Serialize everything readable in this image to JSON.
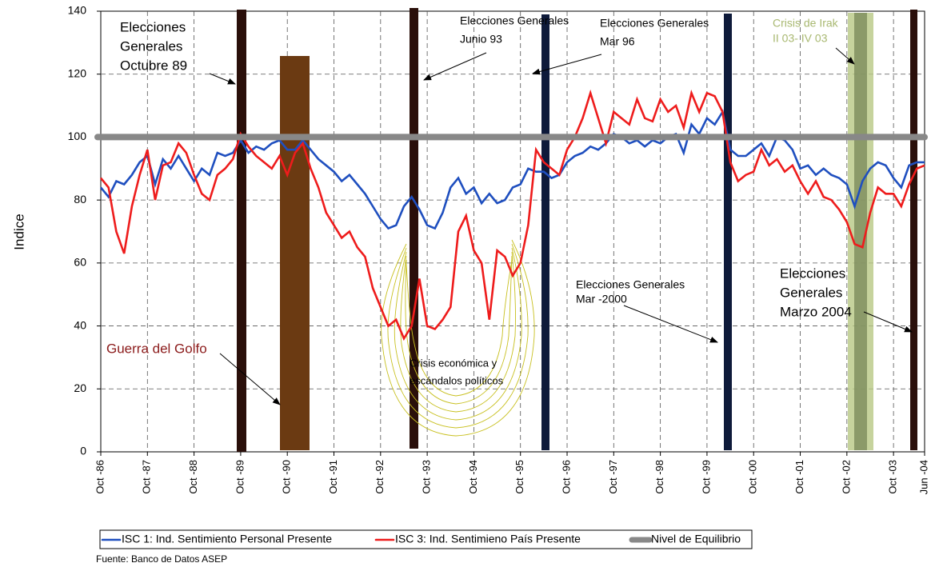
{
  "chart_data": {
    "type": "line",
    "y_label": "Indice",
    "source": "Fuente: Banco de Datos ASEP",
    "categories": [
      "Oct -86",
      null,
      null,
      null,
      null,
      null,
      "Oct -87",
      null,
      null,
      null,
      null,
      null,
      "Oct -88",
      null,
      null,
      null,
      null,
      null,
      "Oct -89",
      null,
      null,
      null,
      null,
      null,
      "Oct -90",
      null,
      null,
      null,
      null,
      null,
      "Oct -91",
      null,
      null,
      null,
      null,
      null,
      "Oct -92",
      null,
      null,
      null,
      null,
      null,
      "Oct -93",
      null,
      null,
      null,
      null,
      null,
      "Oct -94",
      null,
      null,
      null,
      null,
      null,
      "Oct -95",
      null,
      null,
      null,
      null,
      null,
      "Oct -96",
      null,
      null,
      null,
      null,
      null,
      "Oct -97",
      null,
      null,
      null,
      null,
      null,
      "Oct -98",
      null,
      null,
      null,
      null,
      null,
      "Oct -99",
      null,
      null,
      null,
      null,
      null,
      "Oct -00",
      null,
      null,
      null,
      null,
      null,
      "Oct -01",
      null,
      null,
      null,
      null,
      null,
      "Oct -02",
      null,
      null,
      null,
      null,
      null,
      "Oct -03",
      null,
      null,
      null,
      "Jun -04"
    ],
    "series": [
      {
        "name": "ISC 1: Ind. Sentimiento Personal Presente",
        "color": "#1f4fbf",
        "values": [
          84,
          81,
          86,
          85,
          88,
          92,
          94,
          85,
          93,
          90,
          94,
          90,
          86,
          90,
          88,
          95,
          94,
          95,
          99,
          95,
          97,
          96,
          98,
          99,
          96,
          96,
          99,
          96,
          93,
          91,
          89,
          86,
          88,
          85,
          82,
          78,
          74,
          71,
          72,
          78,
          81,
          77,
          72,
          71,
          76,
          84,
          87,
          82,
          84,
          79,
          82,
          79,
          80,
          84,
          85,
          90,
          89,
          89,
          87,
          88,
          92,
          94,
          95,
          97,
          96,
          98,
          101,
          100,
          98,
          99,
          97,
          99,
          98,
          100,
          101,
          95,
          104,
          101,
          106,
          104,
          108,
          96,
          94,
          94,
          96,
          98,
          94,
          100,
          99,
          96,
          90,
          91,
          88,
          90,
          88,
          87,
          85,
          78,
          86,
          90,
          92,
          91,
          87,
          84,
          91,
          92,
          92
        ]
      },
      {
        "name": "ISC 3: Ind. Sentimieno País Presente",
        "color": "#ee1c1c",
        "values": [
          87,
          84,
          70,
          63,
          78,
          88,
          96,
          80,
          91,
          92,
          98,
          95,
          88,
          82,
          80,
          88,
          90,
          93,
          101,
          97,
          94,
          92,
          90,
          94,
          88,
          95,
          98,
          90,
          84,
          76,
          72,
          68,
          70,
          65,
          62,
          52,
          46,
          40,
          42,
          36,
          40,
          55,
          40,
          39,
          42,
          46,
          70,
          75,
          64,
          60,
          42,
          64,
          62,
          56,
          60,
          72,
          96,
          92,
          90,
          88,
          96,
          100,
          106,
          114,
          106,
          98,
          108,
          106,
          104,
          112,
          106,
          105,
          112,
          108,
          110,
          103,
          114,
          108,
          114,
          113,
          108,
          92,
          86,
          88,
          89,
          96,
          91,
          93,
          89,
          91,
          86,
          82,
          86,
          81,
          80,
          77,
          73,
          66,
          65,
          76,
          84,
          82,
          82,
          78,
          85,
          90,
          91
        ]
      }
    ],
    "reference_line": {
      "name": "Nivel de Equilibrio",
      "value": 100,
      "color": "#888888"
    },
    "ylim": [
      0,
      140
    ],
    "yticks": [
      0,
      20,
      40,
      60,
      80,
      100,
      120,
      140
    ],
    "grid": true,
    "annotations": [
      {
        "lines": [
          "Elecciones",
          "Generales",
          "Octubre 89"
        ],
        "color": "#000000"
      },
      {
        "lines": [
          "Elecciones Generales",
          "Junio 93"
        ],
        "color": "#000000"
      },
      {
        "lines": [
          "Elecciones Generales",
          "Mar 96"
        ],
        "color": "#000000"
      },
      {
        "lines": [
          "Crisis de Irak",
          "II 03- IV 03"
        ],
        "color": "#a8b870"
      },
      {
        "lines": [
          "Guerra del Golfo"
        ],
        "color": "#8b1a1a"
      },
      {
        "lines": [
          "Crisis económica y",
          "escándalos políticos"
        ],
        "color": "#000000"
      },
      {
        "lines": [
          "Elecciones Generales",
          "Mar -2000"
        ],
        "color": "#000000"
      },
      {
        "lines": [
          "Elecciones",
          "Generales",
          "Marzo 2004"
        ],
        "color": "#000000"
      }
    ]
  }
}
